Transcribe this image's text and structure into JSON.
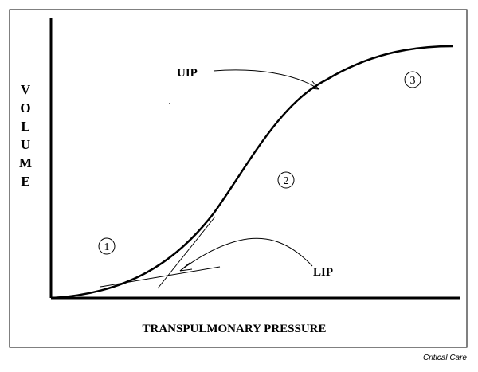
{
  "diagram": {
    "y_axis_label": "VOLUME",
    "x_axis_label": "TRANSPULMONARY PRESSURE",
    "annotations": {
      "uip": "UIP",
      "lip": "LIP"
    },
    "regions": [
      {
        "marker": "1"
      },
      {
        "marker": "2"
      },
      {
        "marker": "3"
      }
    ]
  },
  "credit": "Critical Care",
  "colors": {
    "ink": "#000000",
    "background": "#ffffff"
  }
}
